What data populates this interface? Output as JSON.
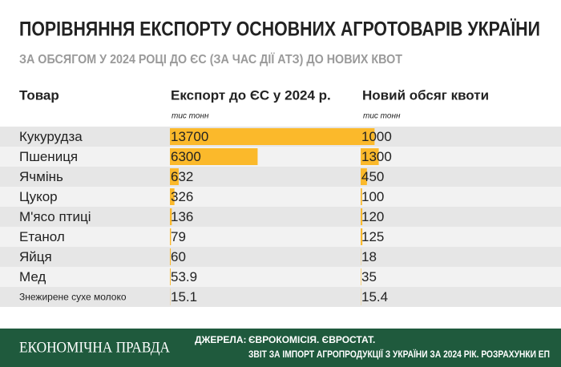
{
  "header": {
    "title": "ПОРІВНЯННЯ ЕКСПОРТУ ОСНОВНИХ АГРОТОВАРІВ УКРАЇНИ",
    "subtitle": "ЗА ОБСЯГОМ У 2024 РОЦІ ДО ЄС (ЗА ЧАС ДІЇ АТЗ) ДО НОВИХ КВОТ"
  },
  "table": {
    "columns": [
      "Товар",
      "Експорт до ЄС у 2024 р.",
      "Новий обсяг квоти"
    ],
    "units": [
      "тис тонн",
      "тис тонн"
    ],
    "rows": [
      [
        "Кукурудза",
        13700,
        1000
      ],
      [
        "Пшениця",
        6300,
        1300
      ],
      [
        "Ячмінь",
        632,
        450
      ],
      [
        "Цукор",
        326,
        100
      ],
      [
        "М'ясо птиці",
        136,
        120
      ],
      [
        "Етанол",
        79,
        125
      ],
      [
        "Яйця",
        60,
        18
      ],
      [
        "Мед",
        53.9,
        35
      ],
      [
        "Знежирене сухе молоко",
        15.1,
        15.4
      ]
    ],
    "bar_color": "#fbb92b"
  },
  "footer": {
    "brand": "ЕКОНОМІЧНА ПРАВДА",
    "sources_label": "ДЖЕРЕЛА:",
    "sources": [
      "ЄВРОКОМІСІЯ. ЄВРОСТАТ.",
      "ЗВІТ ЗА ІМПОРТ АГРОПРОДУКЦІЇ З УКРАЇНИ ЗА 2024 РІК. РОЗРАХУНКИ ЕП"
    ]
  }
}
